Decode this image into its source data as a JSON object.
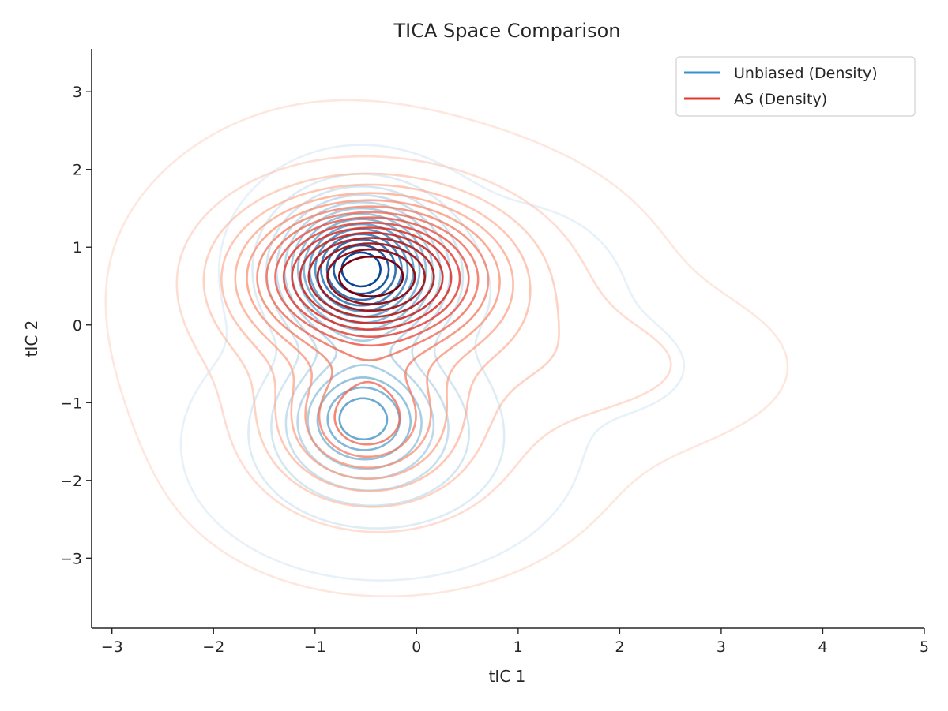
{
  "chart_data": {
    "type": "contour",
    "title": "TICA Space Comparison",
    "xlabel": "tIC 1",
    "ylabel": "tIC 2",
    "xlim": [
      -3.2,
      5.0
    ],
    "ylim": [
      -3.9,
      3.55
    ],
    "xticks": [
      -3,
      -2,
      -1,
      0,
      1,
      2,
      3,
      4,
      5
    ],
    "yticks": [
      -3,
      -2,
      -1,
      0,
      1,
      2,
      3
    ],
    "xtick_labels": [
      "−3",
      "−2",
      "−1",
      "0",
      "1",
      "2",
      "3",
      "4",
      "5"
    ],
    "ytick_labels": [
      "−3",
      "−2",
      "−1",
      "0",
      "1",
      "2",
      "3"
    ],
    "grid": false,
    "legend_position": "top-right",
    "series": [
      {
        "name": "Unbiased (Density)",
        "color": "#3a8fcf",
        "colormap": "Blues",
        "levels": 14,
        "components": [
          {
            "cx": -0.55,
            "cy": 0.72,
            "sx": 0.48,
            "sy": 0.55,
            "w": 1.0
          },
          {
            "cx": -0.55,
            "cy": -1.15,
            "sx": 0.45,
            "sy": 0.5,
            "w": 0.45
          },
          {
            "cx": -0.35,
            "cy": -1.55,
            "sx": 0.85,
            "sy": 0.75,
            "w": 0.22
          },
          {
            "cx": 0.9,
            "cy": 0.3,
            "sx": 0.7,
            "sy": 0.75,
            "w": 0.06
          },
          {
            "cx": 2.0,
            "cy": -0.55,
            "sx": 0.5,
            "sy": 0.4,
            "w": 0.03
          }
        ]
      },
      {
        "name": "AS (Density)",
        "color": "#e3382c",
        "colormap": "Reds",
        "levels": 16,
        "components": [
          {
            "cx": -0.45,
            "cy": 0.65,
            "sx": 0.75,
            "sy": 0.6,
            "w": 1.0
          },
          {
            "cx": -0.5,
            "cy": -1.25,
            "sx": 0.55,
            "sy": 0.55,
            "w": 0.42
          },
          {
            "cx": -0.8,
            "cy": 0.1,
            "sx": 1.05,
            "sy": 1.3,
            "w": 0.16
          },
          {
            "cx": 0.9,
            "cy": 0.0,
            "sx": 0.95,
            "sy": 1.1,
            "w": 0.1
          },
          {
            "cx": 2.2,
            "cy": -0.55,
            "sx": 0.85,
            "sy": 0.55,
            "w": 0.07
          },
          {
            "cx": -0.2,
            "cy": -2.0,
            "sx": 1.05,
            "sy": 0.8,
            "w": 0.08
          }
        ]
      }
    ]
  }
}
